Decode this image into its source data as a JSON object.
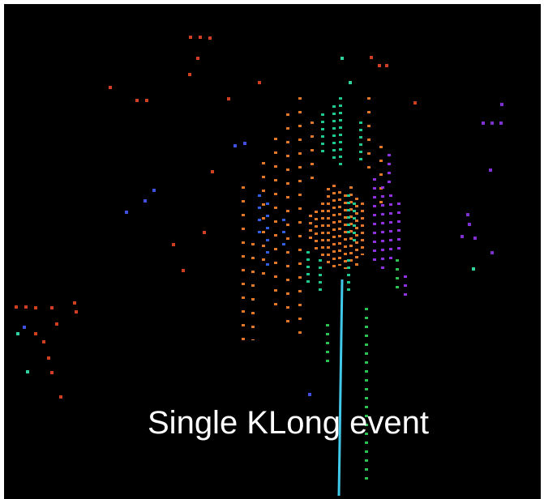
{
  "caption": "Single KLong event"
}
